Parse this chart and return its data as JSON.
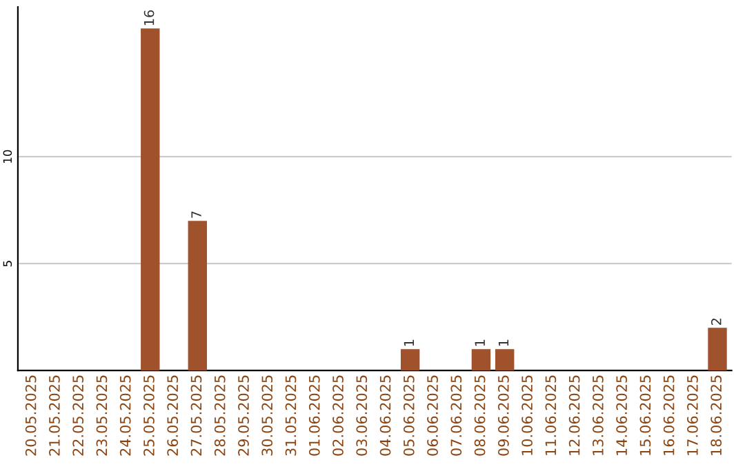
{
  "chart_data": {
    "type": "bar",
    "categories": [
      "20.05.2025",
      "21.05.2025",
      "22.05.2025",
      "23.05.2025",
      "24.05.2025",
      "25.05.2025",
      "26.05.2025",
      "27.05.2025",
      "28.05.2025",
      "29.05.2025",
      "30.05.2025",
      "31.05.2025",
      "01.06.2025",
      "02.06.2025",
      "03.06.2025",
      "04.06.2025",
      "05.06.2025",
      "06.06.2025",
      "07.06.2025",
      "08.06.2025",
      "09.06.2025",
      "10.06.2025",
      "11.06.2025",
      "12.06.2025",
      "13.06.2025",
      "14.06.2025",
      "15.06.2025",
      "16.06.2025",
      "17.06.2025",
      "18.06.2025"
    ],
    "values": [
      0,
      0,
      0,
      0,
      0,
      16,
      0,
      7,
      0,
      0,
      0,
      0,
      0,
      0,
      0,
      0,
      1,
      0,
      0,
      1,
      1,
      0,
      0,
      0,
      0,
      0,
      0,
      0,
      0,
      2
    ],
    "value_labels": [
      null,
      null,
      null,
      null,
      null,
      "16",
      null,
      "7",
      null,
      null,
      null,
      null,
      null,
      null,
      null,
      null,
      "1",
      null,
      null,
      "1",
      "1",
      null,
      null,
      null,
      null,
      null,
      null,
      null,
      null,
      "2"
    ],
    "color": "#a0522d",
    "ylim": [
      0,
      17
    ],
    "yticks": [
      5,
      10
    ],
    "grid": "y",
    "legend": false
  }
}
